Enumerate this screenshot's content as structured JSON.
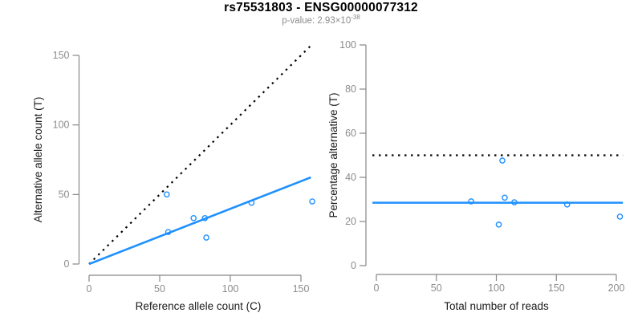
{
  "header": {
    "title": "rs75531803 - ENSG00000077312",
    "p_value_text": "p-value: 2.93×10",
    "p_value_exponent": "-38"
  },
  "colors": {
    "accent_blue": "#1E90FF",
    "dotted_black": "#000000",
    "axis_line": "#878787",
    "tick_label": "#8c8c8c",
    "axis_title": "#1a1a1a",
    "title": "#000000",
    "subtitle": "#8c8c8c"
  },
  "chart_data": [
    {
      "type": "scatter",
      "name": "allele-counts",
      "xlabel": "Reference allele count (C)",
      "ylabel": "Alternative allele count (T)",
      "xlim": [
        0,
        158
      ],
      "ylim": [
        0,
        158
      ],
      "xticks": [
        0,
        50,
        100,
        150
      ],
      "yticks": [
        0,
        50,
        100,
        150
      ],
      "grid": false,
      "legend": "none",
      "points": [
        [
          55,
          50
        ],
        [
          56,
          23
        ],
        [
          74,
          33
        ],
        [
          82,
          33
        ],
        [
          83,
          19
        ],
        [
          115,
          44
        ],
        [
          158,
          45
        ]
      ],
      "lines": [
        {
          "name": "identity-line-dotted",
          "style": "dotted",
          "color": "#000000",
          "from": [
            0,
            0
          ],
          "to": [
            157,
            157
          ]
        },
        {
          "name": "allelic-ratio-fit-line",
          "style": "solid",
          "color": "#1E90FF",
          "from": [
            0,
            0
          ],
          "to": [
            157,
            62.3
          ]
        }
      ]
    },
    {
      "type": "scatter",
      "name": "percentage-alternative",
      "xlabel": "Total number of reads",
      "ylabel": "Percentage alternative (T)",
      "xlim": [
        0,
        204
      ],
      "ylim": [
        0,
        104
      ],
      "xticks": [
        0,
        50,
        100,
        150,
        200
      ],
      "yticks": [
        0,
        20,
        40,
        60,
        80,
        100
      ],
      "grid": false,
      "legend": "none",
      "points": [
        [
          105,
          47.6
        ],
        [
          79,
          29.1
        ],
        [
          107,
          30.8
        ],
        [
          115,
          28.7
        ],
        [
          102,
          18.6
        ],
        [
          159,
          27.7
        ],
        [
          203,
          22.2
        ]
      ],
      "lines": [
        {
          "name": "fifty-percent-line-dotted",
          "style": "dotted",
          "color": "#000000",
          "from": [
            -3.3,
            50
          ],
          "to": [
            205.5,
            50
          ]
        },
        {
          "name": "mean-percentage-line",
          "style": "solid",
          "color": "#1E90FF",
          "from": [
            -3.3,
            28.5
          ],
          "to": [
            205.5,
            28.5
          ]
        }
      ]
    }
  ]
}
